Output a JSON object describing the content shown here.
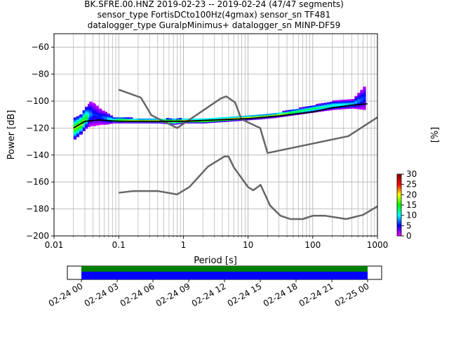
{
  "title_lines": [
    "BK.SFRE.00.HNZ   2019-02-23 -- 2019-02-24  (47/47 segments)",
    "sensor_type FortisDCto100Hz(4gmax) sensor_sn TF481",
    "datalogger_type GuralpMinimus+ datalogger_sn MINP-DF59"
  ],
  "chart_data": [
    {
      "type": "heatmap",
      "xlabel": "Period [s]",
      "ylabel": "Power [dB]",
      "xscale": "log",
      "xlim": [
        0.01,
        1000
      ],
      "ylim": [
        -200,
        -50
      ],
      "grid": true,
      "x_ticks": [
        0.01,
        0.1,
        1,
        10,
        100,
        1000
      ],
      "x_tick_labels": [
        "0.01",
        "0.1",
        "1",
        "10",
        "100",
        "1000"
      ],
      "y_ticks": [
        -200,
        -180,
        -160,
        -140,
        -120,
        -100,
        -80,
        -60
      ],
      "y_tick_labels": [
        "−200",
        "−180",
        "−160",
        "−140",
        "−120",
        "−100",
        "−80",
        "−60"
      ],
      "colorbar": {
        "label": "[%]",
        "range": [
          0,
          30
        ],
        "ticks": [
          0,
          5,
          10,
          15,
          20,
          25,
          30
        ],
        "tick_labels": [
          "0",
          "5",
          "10",
          "15",
          "20",
          "25",
          "30"
        ],
        "colormap": [
          "#ffffff",
          "#ff00ff",
          "#0000ff",
          "#00ffff",
          "#00ff00",
          "#ffff00",
          "#ff0000",
          "#800000"
        ]
      },
      "mean_curve": {
        "color": "#000000",
        "x": [
          0.02,
          0.03,
          0.05,
          0.1,
          0.3,
          1,
          3,
          10,
          30,
          100,
          200,
          400,
          700
        ],
        "y": [
          -120,
          -115,
          -114,
          -115,
          -115,
          -115,
          -114,
          -113,
          -111,
          -108,
          -105,
          -103,
          -102
        ]
      },
      "noise_models": [
        {
          "name": "high",
          "color": "#666666",
          "x": [
            0.1,
            0.22,
            0.32,
            0.8,
            3.8,
            4.6,
            6.3,
            7.9,
            15.4,
            20,
            354.8,
            1000
          ],
          "y": [
            -91.5,
            -97.4,
            -110.5,
            -120,
            -98,
            -96.5,
            -101,
            -113.5,
            -120,
            -138.5,
            -126,
            -112
          ]
        },
        {
          "name": "low",
          "color": "#666666",
          "x": [
            0.1,
            0.17,
            0.4,
            0.8,
            1.24,
            2.4,
            4.3,
            5,
            6,
            10,
            12,
            15.6,
            21.9,
            31.6,
            45,
            70,
            101,
            154,
            328,
            600,
            1000
          ],
          "y": [
            -168,
            -166.7,
            -166.7,
            -169.2,
            -163.7,
            -148.6,
            -141.1,
            -141.1,
            -149,
            -163.8,
            -166.2,
            -162.1,
            -177.5,
            -185,
            -187.5,
            -187.5,
            -185,
            -185,
            -187.5,
            -184.4,
            -178
          ]
        }
      ],
      "histogram_bins": [
        {
          "x": 0.02,
          "y_lo": -128,
          "y_hi": -112,
          "pct": 18
        },
        {
          "x": 0.025,
          "y_lo": -124,
          "y_hi": -110,
          "pct": 20
        },
        {
          "x": 0.03,
          "y_lo": -120,
          "y_hi": -104,
          "pct": 15
        },
        {
          "x": 0.035,
          "y_lo": -118,
          "y_hi": -101,
          "pct": 8
        },
        {
          "x": 0.04,
          "y_lo": -118,
          "y_hi": -102,
          "pct": 6
        },
        {
          "x": 0.05,
          "y_lo": -117,
          "y_hi": -106,
          "pct": 6
        },
        {
          "x": 0.06,
          "y_lo": -117,
          "y_hi": -108,
          "pct": 8
        },
        {
          "x": 0.08,
          "y_lo": -116,
          "y_hi": -112,
          "pct": 14
        },
        {
          "x": 0.1,
          "y_lo": -116,
          "y_hi": -112,
          "pct": 18
        },
        {
          "x": 0.2,
          "y_lo": -116,
          "y_hi": -113,
          "pct": 20
        },
        {
          "x": 0.4,
          "y_lo": -116,
          "y_hi": -113,
          "pct": 22
        },
        {
          "x": 0.7,
          "y_lo": -117,
          "y_hi": -113,
          "pct": 22
        },
        {
          "x": 1,
          "y_lo": -116,
          "y_hi": -113,
          "pct": 24
        },
        {
          "x": 2,
          "y_lo": -116,
          "y_hi": -113,
          "pct": 24
        },
        {
          "x": 4,
          "y_lo": -115,
          "y_hi": -112,
          "pct": 24
        },
        {
          "x": 8,
          "y_lo": -114,
          "y_hi": -111,
          "pct": 22
        },
        {
          "x": 15,
          "y_lo": -113,
          "y_hi": -110,
          "pct": 20
        },
        {
          "x": 25,
          "y_lo": -112,
          "y_hi": -109,
          "pct": 20
        },
        {
          "x": 50,
          "y_lo": -110,
          "y_hi": -106,
          "pct": 16
        },
        {
          "x": 100,
          "y_lo": -108,
          "y_hi": -103,
          "pct": 14
        },
        {
          "x": 200,
          "y_lo": -106,
          "y_hi": -100,
          "pct": 12
        },
        {
          "x": 400,
          "y_lo": -105,
          "y_hi": -99,
          "pct": 10
        },
        {
          "x": 600,
          "y_lo": -106,
          "y_hi": -89,
          "pct": 6
        }
      ]
    },
    {
      "type": "bar",
      "description_axis": "time",
      "x_tick_labels": [
        "02-24 00",
        "02-24 03",
        "02-24 06",
        "02-24 09",
        "02-24 12",
        "02-24 15",
        "02-24 18",
        "02-24 21",
        "02-25 00"
      ],
      "coverage": [
        {
          "start": "02-24 00",
          "end": "02-25 00",
          "color": "#008000"
        },
        {
          "start": "02-24 00",
          "end": "02-25 00",
          "color": "#0000ff"
        }
      ]
    }
  ]
}
